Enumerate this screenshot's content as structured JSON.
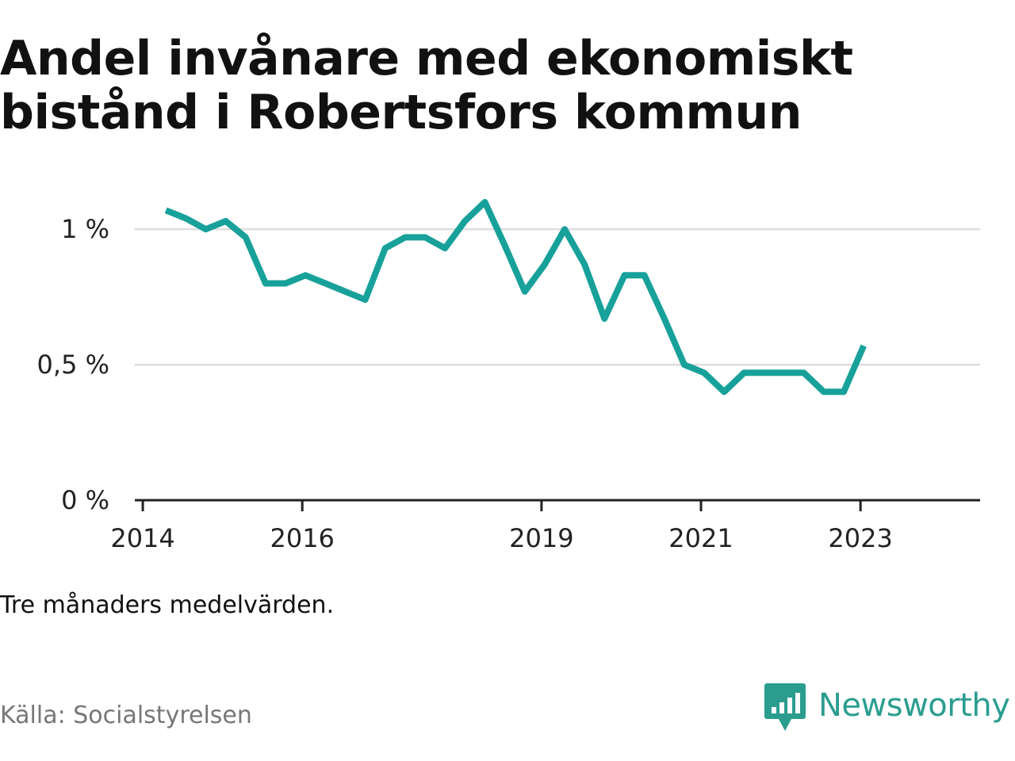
{
  "title": "Andel invånare med ekonomiskt bistånd i Robertsfors kommun",
  "note": "Tre månaders medelvärden.",
  "source": "Källa: Socialstyrelsen",
  "brand": {
    "name": "Newsworthy",
    "color": "#2a9d8f",
    "icon": "bar-chart-speech-bubble-icon"
  },
  "chart_data": {
    "type": "line",
    "title": "Andel invånare med ekonomiskt bistånd i Robertsfors kommun",
    "xlabel": "",
    "ylabel": "",
    "x_ticks": [
      {
        "value": 2014.0,
        "label": "2014"
      },
      {
        "value": 2016.0,
        "label": "2016"
      },
      {
        "value": 2019.0,
        "label": "2019"
      },
      {
        "value": 2021.0,
        "label": "2021"
      },
      {
        "value": 2023.0,
        "label": "2023"
      }
    ],
    "y_ticks": [
      {
        "value": 0,
        "label": "0 %"
      },
      {
        "value": 0.5,
        "label": "0,5 %"
      },
      {
        "value": 1,
        "label": "1 %"
      }
    ],
    "xlim": [
      2013.9,
      2024.5
    ],
    "ylim": [
      0,
      1.1
    ],
    "grid": true,
    "series": [
      {
        "color": "#18a19a",
        "x": [
          2014.29,
          2014.54,
          2014.79,
          2015.04,
          2015.29,
          2015.54,
          2015.79,
          2016.04,
          2016.29,
          2016.54,
          2016.79,
          2017.04,
          2017.29,
          2017.54,
          2017.79,
          2018.04,
          2018.29,
          2018.54,
          2018.79,
          2019.04,
          2019.29,
          2019.54,
          2019.79,
          2020.04,
          2020.29,
          2020.54,
          2020.79,
          2021.04,
          2021.29,
          2021.54,
          2021.79,
          2022.04,
          2022.29,
          2022.54,
          2022.79,
          2023.04
        ],
        "values": [
          1.07,
          1.04,
          1.0,
          1.03,
          0.97,
          0.8,
          0.8,
          0.83,
          0.8,
          0.77,
          0.74,
          0.93,
          0.97,
          0.97,
          0.93,
          1.03,
          1.1,
          0.94,
          0.77,
          0.87,
          1.0,
          0.87,
          0.67,
          0.83,
          0.83,
          0.67,
          0.5,
          0.47,
          0.4,
          0.47,
          0.47,
          0.47,
          0.47,
          0.4,
          0.4,
          0.57
        ]
      }
    ]
  }
}
